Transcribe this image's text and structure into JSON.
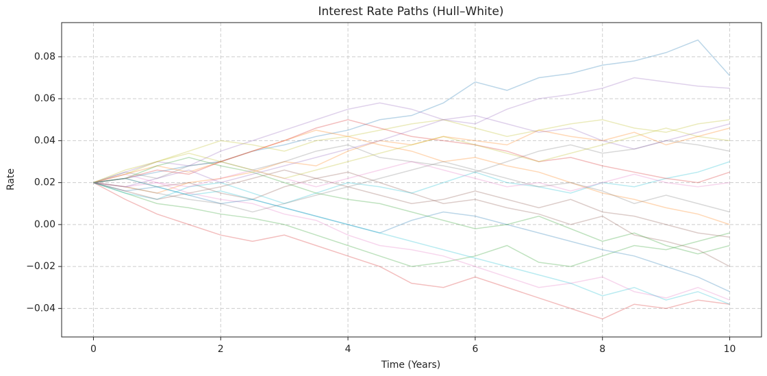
{
  "chart_data": {
    "type": "line",
    "title": "Interest Rate Paths (Hull–White)",
    "x_label": "Time (Years)",
    "y_label": "Rate",
    "x": [
      0,
      0.5,
      1,
      1.5,
      2,
      2.5,
      3,
      3.5,
      4,
      4.5,
      5,
      5.5,
      6,
      6.5,
      7,
      7.5,
      8,
      8.5,
      9,
      9.5,
      10
    ],
    "xlim": [
      -0.5,
      10.5
    ],
    "xticks": [
      0,
      2,
      4,
      6,
      8,
      10
    ],
    "ylim": [
      -0.0536,
      0.0963
    ],
    "yticks": [
      {
        "value": -0.04,
        "label": "−0.04"
      },
      {
        "value": -0.02,
        "label": "−0.02"
      },
      {
        "value": 0,
        "label": "0.00"
      },
      0.02,
      0.04,
      0.06,
      0.08
    ],
    "grid": true,
    "line_alpha": 0.3,
    "series": [
      {
        "color": "#1f77b4",
        "values": [
          0.02,
          0.022,
          0.025,
          0.028,
          0.03,
          0.035,
          0.038,
          0.042,
          0.045,
          0.05,
          0.052,
          0.058,
          0.068,
          0.064,
          0.07,
          0.072,
          0.076,
          0.078,
          0.082,
          0.088,
          0.071
        ]
      },
      {
        "color": "#ff7f0e",
        "values": [
          0.02,
          0.018,
          0.015,
          0.02,
          0.022,
          0.025,
          0.03,
          0.028,
          0.035,
          0.04,
          0.038,
          0.042,
          0.04,
          0.038,
          0.045,
          0.042,
          0.04,
          0.044,
          0.038,
          0.042,
          0.046
        ]
      },
      {
        "color": "#2ca02c",
        "values": [
          0.02,
          0.015,
          0.01,
          0.008,
          0.005,
          0.003,
          0.0,
          -0.005,
          -0.01,
          -0.015,
          -0.02,
          -0.018,
          -0.015,
          -0.01,
          -0.018,
          -0.02,
          -0.015,
          -0.01,
          -0.012,
          -0.008,
          -0.004
        ]
      },
      {
        "color": "#d62728",
        "values": [
          0.02,
          0.012,
          0.005,
          0.0,
          -0.005,
          -0.008,
          -0.005,
          -0.01,
          -0.015,
          -0.02,
          -0.028,
          -0.03,
          -0.025,
          -0.03,
          -0.035,
          -0.04,
          -0.045,
          -0.038,
          -0.04,
          -0.036,
          -0.038
        ]
      },
      {
        "color": "#9467bd",
        "values": [
          0.02,
          0.025,
          0.03,
          0.028,
          0.035,
          0.04,
          0.045,
          0.05,
          0.055,
          0.058,
          0.055,
          0.05,
          0.048,
          0.055,
          0.06,
          0.062,
          0.065,
          0.07,
          0.068,
          0.066,
          0.065
        ]
      },
      {
        "color": "#8c564b",
        "values": [
          0.02,
          0.022,
          0.018,
          0.02,
          0.015,
          0.012,
          0.018,
          0.022,
          0.025,
          0.02,
          0.015,
          0.01,
          0.012,
          0.008,
          0.005,
          0.0,
          0.004,
          -0.005,
          -0.008,
          -0.012,
          -0.02
        ]
      },
      {
        "color": "#e377c2",
        "values": [
          0.02,
          0.018,
          0.02,
          0.015,
          0.012,
          0.01,
          0.005,
          0.002,
          -0.005,
          -0.01,
          -0.012,
          -0.015,
          -0.02,
          -0.025,
          -0.03,
          -0.028,
          -0.025,
          -0.032,
          -0.035,
          -0.03,
          -0.036
        ]
      },
      {
        "color": "#7f7f7f",
        "values": [
          0.02,
          0.025,
          0.022,
          0.028,
          0.03,
          0.026,
          0.03,
          0.035,
          0.038,
          0.032,
          0.03,
          0.028,
          0.025,
          0.03,
          0.035,
          0.038,
          0.034,
          0.036,
          0.04,
          0.038,
          0.035
        ]
      },
      {
        "color": "#bcbd22",
        "values": [
          0.02,
          0.024,
          0.03,
          0.035,
          0.04,
          0.038,
          0.035,
          0.04,
          0.042,
          0.045,
          0.048,
          0.05,
          0.046,
          0.042,
          0.045,
          0.048,
          0.05,
          0.046,
          0.044,
          0.048,
          0.05
        ]
      },
      {
        "color": "#17becf",
        "values": [
          0.02,
          0.015,
          0.012,
          0.018,
          0.02,
          0.015,
          0.01,
          0.015,
          0.02,
          0.018,
          0.015,
          0.02,
          0.025,
          0.02,
          0.018,
          0.015,
          0.02,
          0.018,
          0.022,
          0.025,
          0.03
        ]
      },
      {
        "color": "#1f77b4",
        "values": [
          0.02,
          0.016,
          0.018,
          0.014,
          0.01,
          0.012,
          0.008,
          0.004,
          0.0,
          -0.004,
          0.002,
          0.006,
          0.004,
          0.0,
          -0.004,
          -0.008,
          -0.012,
          -0.015,
          -0.02,
          -0.025,
          -0.032
        ]
      },
      {
        "color": "#ff7f0e",
        "values": [
          0.02,
          0.024,
          0.028,
          0.025,
          0.03,
          0.035,
          0.04,
          0.045,
          0.042,
          0.038,
          0.035,
          0.03,
          0.032,
          0.028,
          0.025,
          0.02,
          0.015,
          0.012,
          0.008,
          0.005,
          0.0
        ]
      },
      {
        "color": "#2ca02c",
        "values": [
          0.02,
          0.022,
          0.028,
          0.032,
          0.028,
          0.025,
          0.02,
          0.015,
          0.012,
          0.01,
          0.006,
          0.002,
          -0.002,
          0.0,
          0.004,
          -0.002,
          -0.008,
          -0.004,
          -0.01,
          -0.014,
          -0.01
        ]
      },
      {
        "color": "#d62728",
        "values": [
          0.02,
          0.022,
          0.026,
          0.024,
          0.03,
          0.035,
          0.04,
          0.046,
          0.05,
          0.046,
          0.042,
          0.04,
          0.038,
          0.035,
          0.03,
          0.032,
          0.028,
          0.025,
          0.022,
          0.02,
          0.025
        ]
      },
      {
        "color": "#9467bd",
        "values": [
          0.02,
          0.018,
          0.022,
          0.026,
          0.02,
          0.024,
          0.028,
          0.032,
          0.036,
          0.04,
          0.045,
          0.05,
          0.052,
          0.048,
          0.044,
          0.046,
          0.04,
          0.036,
          0.04,
          0.044,
          0.048
        ]
      },
      {
        "color": "#8c564b",
        "values": [
          0.02,
          0.016,
          0.012,
          0.015,
          0.018,
          0.022,
          0.026,
          0.022,
          0.018,
          0.014,
          0.01,
          0.012,
          0.016,
          0.012,
          0.008,
          0.012,
          0.006,
          0.004,
          0.0,
          -0.004,
          -0.006
        ]
      },
      {
        "color": "#e377c2",
        "values": [
          0.02,
          0.024,
          0.02,
          0.018,
          0.022,
          0.026,
          0.022,
          0.018,
          0.022,
          0.026,
          0.03,
          0.026,
          0.022,
          0.018,
          0.02,
          0.016,
          0.02,
          0.024,
          0.02,
          0.018,
          0.02
        ]
      },
      {
        "color": "#7f7f7f",
        "values": [
          0.02,
          0.018,
          0.015,
          0.012,
          0.01,
          0.006,
          0.01,
          0.014,
          0.018,
          0.022,
          0.026,
          0.03,
          0.026,
          0.022,
          0.018,
          0.02,
          0.016,
          0.01,
          0.014,
          0.01,
          0.006
        ]
      },
      {
        "color": "#bcbd22",
        "values": [
          0.02,
          0.026,
          0.03,
          0.034,
          0.03,
          0.026,
          0.022,
          0.026,
          0.03,
          0.034,
          0.038,
          0.042,
          0.038,
          0.034,
          0.03,
          0.034,
          0.038,
          0.042,
          0.046,
          0.042,
          0.04
        ]
      },
      {
        "color": "#17becf",
        "values": [
          0.02,
          0.022,
          0.018,
          0.014,
          0.016,
          0.012,
          0.008,
          0.004,
          0.0,
          -0.004,
          -0.008,
          -0.012,
          -0.016,
          -0.02,
          -0.024,
          -0.028,
          -0.034,
          -0.03,
          -0.036,
          -0.032,
          -0.038
        ]
      }
    ]
  }
}
